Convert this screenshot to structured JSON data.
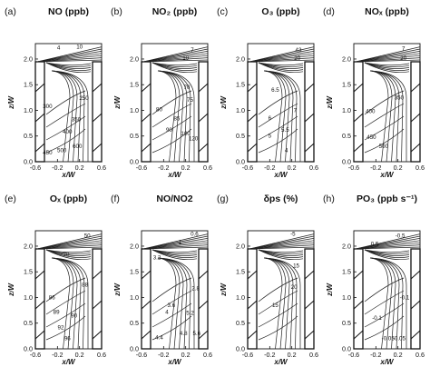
{
  "figure": {
    "xlabel": "x/W",
    "ylabel": "z/W",
    "x_ticks": [
      "-0.6",
      "-0.2",
      "0.2",
      "0.6"
    ],
    "y_ticks": [
      "0.0",
      "0.5",
      "1.0",
      "1.5",
      "2.0"
    ]
  },
  "chart_data": [
    {
      "type": "contour",
      "letter": "(a)",
      "title": "NO (ppb)",
      "xlim": [
        -0.6,
        0.6
      ],
      "ylim": [
        0,
        2.3
      ],
      "contour_labels": [
        {
          "text": "4",
          "x": -0.18,
          "y": 2.22
        },
        {
          "text": "10",
          "x": 0.2,
          "y": 2.24
        },
        {
          "text": "250",
          "x": 0.28,
          "y": 1.24
        },
        {
          "text": "300",
          "x": -0.38,
          "y": 1.08
        },
        {
          "text": "350",
          "x": 0.14,
          "y": 0.82
        },
        {
          "text": "400",
          "x": -0.02,
          "y": 0.58
        },
        {
          "text": "450",
          "x": -0.38,
          "y": 0.18
        },
        {
          "text": "500",
          "x": -0.12,
          "y": 0.22
        },
        {
          "text": "600",
          "x": 0.16,
          "y": 0.3
        }
      ]
    },
    {
      "type": "contour",
      "letter": "(b)",
      "title": "NO₂ (ppb)",
      "xlim": [
        -0.6,
        0.6
      ],
      "ylim": [
        0,
        2.3
      ],
      "contour_labels": [
        {
          "text": "7",
          "x": 0.32,
          "y": 2.18
        },
        {
          "text": "10",
          "x": 0.2,
          "y": 2.02
        },
        {
          "text": "70",
          "x": 0.22,
          "y": 1.45
        },
        {
          "text": "75",
          "x": 0.28,
          "y": 1.2
        },
        {
          "text": "80",
          "x": -0.28,
          "y": 1.02
        },
        {
          "text": "85",
          "x": 0.04,
          "y": 0.84
        },
        {
          "text": "90",
          "x": -0.1,
          "y": 0.62
        },
        {
          "text": "100",
          "x": 0.2,
          "y": 0.55
        },
        {
          "text": "120",
          "x": 0.34,
          "y": 0.45
        }
      ]
    },
    {
      "type": "contour",
      "letter": "(c)",
      "title": "O₃ (ppb)",
      "xlim": [
        -0.6,
        0.6
      ],
      "ylim": [
        0,
        2.3
      ],
      "contour_labels": [
        {
          "text": "43",
          "x": 0.32,
          "y": 2.18
        },
        {
          "text": "20",
          "x": 0.3,
          "y": 2.02
        },
        {
          "text": "6.5",
          "x": -0.1,
          "y": 1.4
        },
        {
          "text": "7",
          "x": 0.26,
          "y": 1.0
        },
        {
          "text": "6",
          "x": -0.2,
          "y": 0.85
        },
        {
          "text": "5",
          "x": -0.2,
          "y": 0.5
        },
        {
          "text": "5.5",
          "x": 0.08,
          "y": 0.62
        },
        {
          "text": "4",
          "x": 0.1,
          "y": 0.22
        }
      ]
    },
    {
      "type": "contour",
      "letter": "(d)",
      "title": "NOₓ (ppb)",
      "xlim": [
        -0.6,
        0.6
      ],
      "ylim": [
        0,
        2.3
      ],
      "contour_labels": [
        {
          "text": "7",
          "x": 0.3,
          "y": 2.2
        },
        {
          "text": "20",
          "x": 0.3,
          "y": 2.02
        },
        {
          "text": "400",
          "x": -0.3,
          "y": 0.98
        },
        {
          "text": "350",
          "x": 0.22,
          "y": 1.25
        },
        {
          "text": "450",
          "x": -0.28,
          "y": 0.48
        },
        {
          "text": "500",
          "x": -0.06,
          "y": 0.3
        }
      ]
    },
    {
      "type": "contour",
      "letter": "(e)",
      "title": "Oₓ (ppb)",
      "xlim": [
        -0.6,
        0.6
      ],
      "ylim": [
        0,
        2.3
      ],
      "contour_labels": [
        {
          "text": "50",
          "x": 0.34,
          "y": 2.2
        },
        {
          "text": "70",
          "x": -0.04,
          "y": 1.84
        },
        {
          "text": "86",
          "x": -0.3,
          "y": 1.0
        },
        {
          "text": "88",
          "x": 0.3,
          "y": 1.25
        },
        {
          "text": "89",
          "x": -0.22,
          "y": 0.72
        },
        {
          "text": "90",
          "x": 0.1,
          "y": 0.65
        },
        {
          "text": "92",
          "x": -0.14,
          "y": 0.42
        },
        {
          "text": "96",
          "x": -0.02,
          "y": 0.2
        }
      ]
    },
    {
      "type": "contour",
      "letter": "(f)",
      "title": "NO/NO2",
      "xlim": [
        -0.6,
        0.6
      ],
      "ylim": [
        0,
        2.3
      ],
      "contour_labels": [
        {
          "text": "0.6",
          "x": 0.36,
          "y": 2.24
        },
        {
          "text": "1",
          "x": 0.1,
          "y": 2.08
        },
        {
          "text": "3.2",
          "x": -0.32,
          "y": 1.78
        },
        {
          "text": "3.6",
          "x": -0.06,
          "y": 0.85
        },
        {
          "text": "2.8",
          "x": 0.38,
          "y": 1.18
        },
        {
          "text": "4",
          "x": -0.14,
          "y": 0.72
        },
        {
          "text": "5.2",
          "x": 0.28,
          "y": 0.7
        },
        {
          "text": "4.4",
          "x": -0.28,
          "y": 0.22
        },
        {
          "text": "4.8",
          "x": 0.16,
          "y": 0.3
        },
        {
          "text": "5.6",
          "x": 0.4,
          "y": 0.3
        }
      ]
    },
    {
      "type": "contour",
      "letter": "(g)",
      "title": "δps (%)",
      "xlim": [
        -0.6,
        0.6
      ],
      "ylim": [
        0,
        2.3
      ],
      "contour_labels": [
        {
          "text": "-5",
          "x": 0.22,
          "y": 2.24
        },
        {
          "text": "15",
          "x": 0.28,
          "y": 1.62
        },
        {
          "text": "20",
          "x": 0.24,
          "y": 1.2
        },
        {
          "text": "15",
          "x": -0.1,
          "y": 0.85
        }
      ]
    },
    {
      "type": "contour",
      "letter": "(h)",
      "title": "PO₃ (ppb s⁻¹)",
      "xlim": [
        -0.6,
        0.6
      ],
      "ylim": [
        0,
        2.3
      ],
      "contour_labels": [
        {
          "text": "-0.5",
          "x": 0.24,
          "y": 2.2
        },
        {
          "text": "0.5",
          "x": -0.22,
          "y": 2.04
        },
        {
          "text": "-0.1",
          "x": 0.32,
          "y": 1.0
        },
        {
          "text": "-0.1",
          "x": -0.18,
          "y": 0.6
        },
        {
          "text": "-0.05",
          "x": 0.02,
          "y": 0.2
        },
        {
          "text": "-0.05",
          "x": 0.22,
          "y": 0.2
        }
      ]
    }
  ]
}
